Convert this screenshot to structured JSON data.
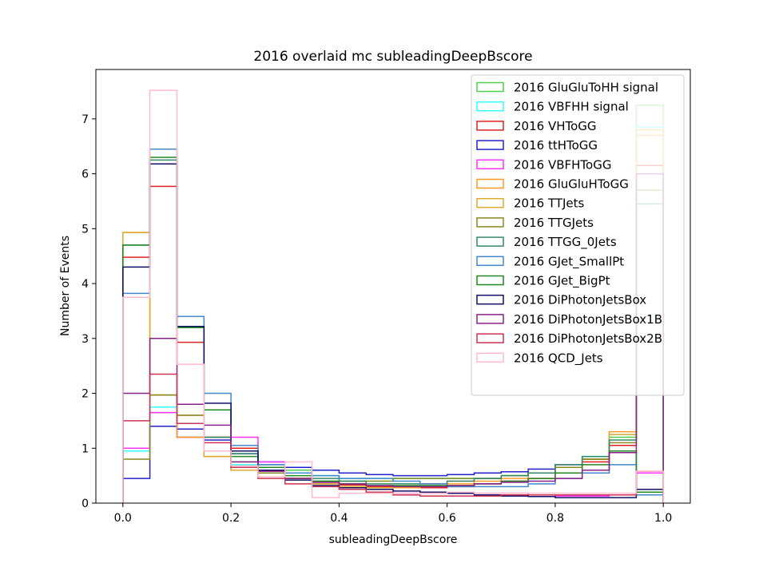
{
  "chart_data": {
    "type": "histogram-step",
    "title": "2016 overlaid mc subleadingDeepBscore",
    "xlabel": "subleadingDeepBscore",
    "ylabel": "Number of Events",
    "xlim": [
      -0.05,
      1.05
    ],
    "ylim": [
      0,
      7.9
    ],
    "xticks": [
      "0.0",
      "0.2",
      "0.4",
      "0.6",
      "0.8",
      "1.0"
    ],
    "yticks": [
      "0",
      "1",
      "2",
      "3",
      "4",
      "5",
      "6",
      "7"
    ],
    "legend_position": "top-right",
    "grid": false,
    "bin_edges": [
      0.0,
      0.05,
      0.1,
      0.15,
      0.2,
      0.25,
      0.3,
      0.35,
      0.4,
      0.45,
      0.5,
      0.55,
      0.6,
      0.65,
      0.7,
      0.75,
      0.8,
      0.85,
      0.9,
      0.95,
      1.0
    ],
    "series": [
      {
        "name": "2016 GluGluToHH signal",
        "color": "#4fd04f",
        "values": [
          0.95,
          1.65,
          1.2,
          0.95,
          0.75,
          0.65,
          0.6,
          0.5,
          0.45,
          0.45,
          0.45,
          0.45,
          0.45,
          0.45,
          0.5,
          0.55,
          0.65,
          0.8,
          1.2,
          7.25
        ]
      },
      {
        "name": "2016 VBFHH signal",
        "color": "#33ffff",
        "values": [
          0.95,
          1.75,
          1.2,
          0.85,
          0.7,
          0.6,
          0.55,
          0.5,
          0.45,
          0.45,
          0.45,
          0.45,
          0.45,
          0.45,
          0.5,
          0.55,
          0.65,
          0.85,
          1.25,
          6.85
        ]
      },
      {
        "name": "2016 VHToGG",
        "color": "#dd2222",
        "values": [
          4.48,
          5.77,
          2.93,
          1.7,
          1.0,
          0.65,
          0.45,
          0.38,
          0.33,
          0.3,
          0.28,
          0.28,
          0.3,
          0.35,
          0.4,
          0.45,
          0.55,
          0.75,
          1.05,
          6.15
        ]
      },
      {
        "name": "2016 ttHToGG",
        "color": "#2222cc",
        "values": [
          0.45,
          1.4,
          1.35,
          1.15,
          0.9,
          0.75,
          0.65,
          0.6,
          0.55,
          0.52,
          0.5,
          0.5,
          0.52,
          0.55,
          0.57,
          0.62,
          0.7,
          0.8,
          0.95,
          0.2
        ]
      },
      {
        "name": "2016 VBFHToGG",
        "color": "#ff33ff",
        "values": [
          1.0,
          1.65,
          1.2,
          1.2,
          1.2,
          0.75,
          0.45,
          0.35,
          0.25,
          0.2,
          0.18,
          0.18,
          0.18,
          0.18,
          0.18,
          0.15,
          0.13,
          0.13,
          0.15,
          0.55
        ]
      },
      {
        "name": "2016 GluGluHToGG",
        "color": "#ff9922",
        "values": [
          4.93,
          1.97,
          1.2,
          0.85,
          0.6,
          0.55,
          0.45,
          0.35,
          0.3,
          0.28,
          0.28,
          0.3,
          0.35,
          0.4,
          0.45,
          0.55,
          0.65,
          0.8,
          1.3,
          6.8
        ]
      },
      {
        "name": "2016 TTJets",
        "color": "#ddaa33",
        "values": [
          4.93,
          1.97,
          1.6,
          0.85,
          0.6,
          0.55,
          0.45,
          0.35,
          0.3,
          0.28,
          0.3,
          0.35,
          0.4,
          0.45,
          0.5,
          0.55,
          0.65,
          0.8,
          1.25,
          6.7
        ]
      },
      {
        "name": "2016 TTGJets",
        "color": "#888822",
        "values": [
          0.8,
          1.97,
          1.6,
          1.2,
          0.65,
          0.55,
          0.45,
          0.4,
          0.4,
          0.4,
          0.45,
          0.45,
          0.45,
          0.45,
          0.5,
          0.55,
          0.65,
          0.8,
          1.1,
          5.7
        ]
      },
      {
        "name": "2016 TTGG_0Jets",
        "color": "#338866",
        "values": [
          4.7,
          6.25,
          3.2,
          1.2,
          0.9,
          0.7,
          0.55,
          0.45,
          0.4,
          0.35,
          0.35,
          0.35,
          0.4,
          0.45,
          0.5,
          0.55,
          0.7,
          0.85,
          1.15,
          5.45
        ]
      },
      {
        "name": "2016 GJet_SmallPt",
        "color": "#4488cc",
        "values": [
          3.82,
          6.45,
          3.4,
          2.0,
          1.05,
          0.7,
          0.55,
          0.5,
          0.45,
          0.45,
          0.4,
          0.35,
          0.3,
          0.3,
          0.3,
          0.35,
          0.45,
          0.55,
          0.7,
          0.15
        ]
      },
      {
        "name": "2016 GJet_BigPt",
        "color": "#228822",
        "values": [
          4.7,
          6.3,
          3.2,
          1.7,
          0.85,
          0.65,
          0.5,
          0.4,
          0.35,
          0.32,
          0.32,
          0.32,
          0.32,
          0.35,
          0.4,
          0.45,
          0.55,
          0.7,
          0.95,
          0.2
        ]
      },
      {
        "name": "2016 DiPhotonJetsBox",
        "color": "#111166",
        "values": [
          4.3,
          6.18,
          3.22,
          1.82,
          0.95,
          0.6,
          0.42,
          0.32,
          0.28,
          0.25,
          0.22,
          0.2,
          0.18,
          0.15,
          0.13,
          0.12,
          0.1,
          0.1,
          0.1,
          0.25
        ]
      },
      {
        "name": "2016 DiPhotonJetsBox1B",
        "color": "#882288",
        "values": [
          2.0,
          3.0,
          1.8,
          1.42,
          0.75,
          0.58,
          0.45,
          0.38,
          0.35,
          0.32,
          0.3,
          0.3,
          0.32,
          0.35,
          0.38,
          0.4,
          0.45,
          0.6,
          0.92,
          6.0
        ]
      },
      {
        "name": "2016 DiPhotonJetsBox2B",
        "color": "#cc3355",
        "values": [
          1.5,
          2.35,
          1.45,
          1.1,
          0.65,
          0.45,
          0.35,
          0.3,
          0.25,
          0.2,
          0.15,
          0.13,
          0.13,
          0.13,
          0.15,
          0.15,
          0.15,
          0.15,
          0.15,
          0.58
        ]
      },
      {
        "name": "2016 QCD_Jets",
        "color": "#ffbbcc",
        "values": [
          3.75,
          7.52,
          2.53,
          0.95,
          0.68,
          0.48,
          0.75,
          0.1,
          0.18,
          0.18,
          0.18,
          0.18,
          0.2,
          0.18,
          0.18,
          0.18,
          0.18,
          0.18,
          0.18,
          0.58
        ]
      }
    ]
  }
}
